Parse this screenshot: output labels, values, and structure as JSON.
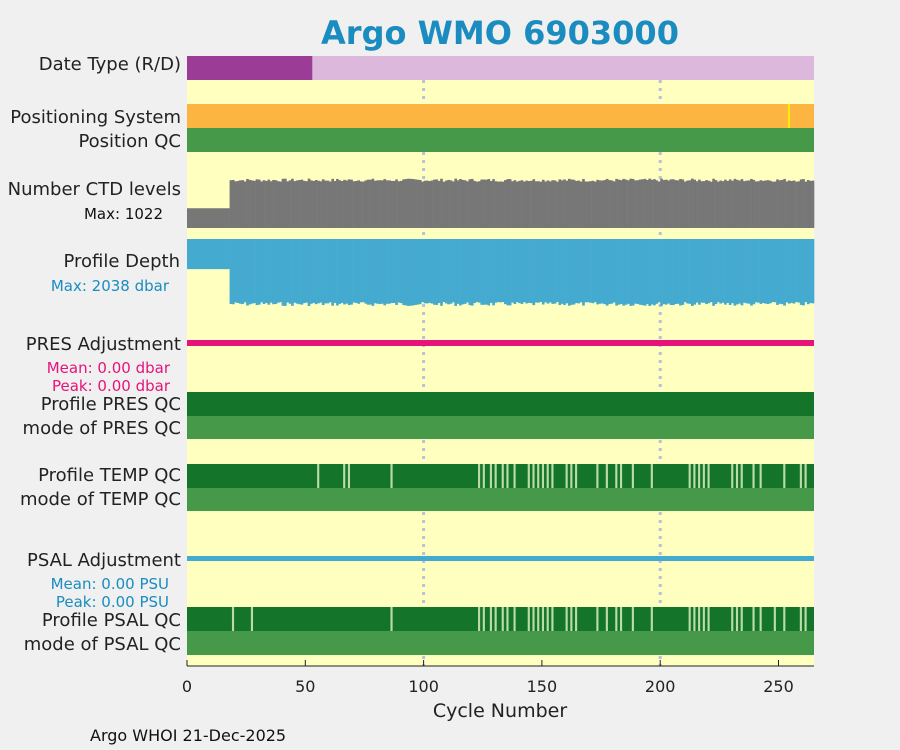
{
  "chart_data": {
    "type": "bar",
    "title": "Argo WMO 6903000",
    "xlabel": "Cycle Number",
    "xlim": [
      0,
      265
    ],
    "xticks": [
      0,
      50,
      100,
      150,
      200,
      250
    ],
    "vlines": [
      100,
      200
    ],
    "footer": "Argo WHOI 21-Dec-2025",
    "colors": {
      "background": "#ffffc0",
      "realtime": "#9b3c96",
      "delayed": "#dcb8dc",
      "gps": "#fbb540",
      "gps_other": "#fff200",
      "qc_good": "#47994a",
      "qc_profile_a": "#14742a",
      "qc_profile_gap": "#bcdca6",
      "ctd": "#777777",
      "depth": "#44aacf",
      "pres_adj": "#e6137a",
      "psal_adj": "#44aacf",
      "title": "#1a8cbf"
    },
    "rows": {
      "date_type": {
        "label": "Date Type (R/D)",
        "realtime_until": 53
      },
      "positioning": {
        "label": "Positioning System",
        "other_at": [
          254
        ]
      },
      "position_qc": {
        "label": "Position QC"
      },
      "ctd_levels": {
        "label": "Number CTD levels",
        "max_label": "Max: 1022",
        "max": 1022,
        "segments": [
          [
            0,
            18,
            0.38
          ],
          [
            18,
            265,
            0.93
          ]
        ]
      },
      "profile_depth": {
        "label": "Profile Depth",
        "max_label": "Max: 2038 dbar",
        "max": 2038,
        "segments": [
          [
            0,
            18,
            0.45
          ],
          [
            18,
            265,
            0.98
          ]
        ]
      },
      "pres_adj": {
        "label": "PRES Adjustment",
        "mean": "Mean: 0.00 dbar",
        "peak": "Peak: 0.00 dbar"
      },
      "pres_qc": {
        "label": "Profile PRES QC",
        "mode_label": "mode of PRES QC"
      },
      "temp_qc": {
        "label": "Profile TEMP QC",
        "mode_label": "mode of TEMP QC",
        "gaps": [
          55,
          66,
          68,
          86,
          123,
          125,
          128,
          130,
          133,
          135,
          138,
          144,
          146,
          148,
          150,
          152,
          154,
          160,
          162,
          164,
          173,
          177,
          181,
          183,
          188,
          196,
          212,
          214,
          216,
          218,
          220,
          230,
          232,
          234,
          239,
          242,
          252,
          259,
          261
        ]
      },
      "psal_adj": {
        "label": "PSAL Adjustment",
        "mean": "Mean: 0.00 PSU",
        "peak": "Peak: 0.00 PSU"
      },
      "psal_qc": {
        "label": "Profile PSAL QC",
        "mode_label": "mode of PSAL QC",
        "gaps": [
          19,
          27,
          86,
          123,
          125,
          128,
          130,
          133,
          135,
          138,
          144,
          146,
          148,
          150,
          152,
          154,
          160,
          162,
          164,
          173,
          177,
          181,
          183,
          188,
          196,
          212,
          214,
          216,
          218,
          220,
          230,
          232,
          234,
          239,
          242,
          248,
          252,
          259,
          261
        ]
      }
    }
  }
}
